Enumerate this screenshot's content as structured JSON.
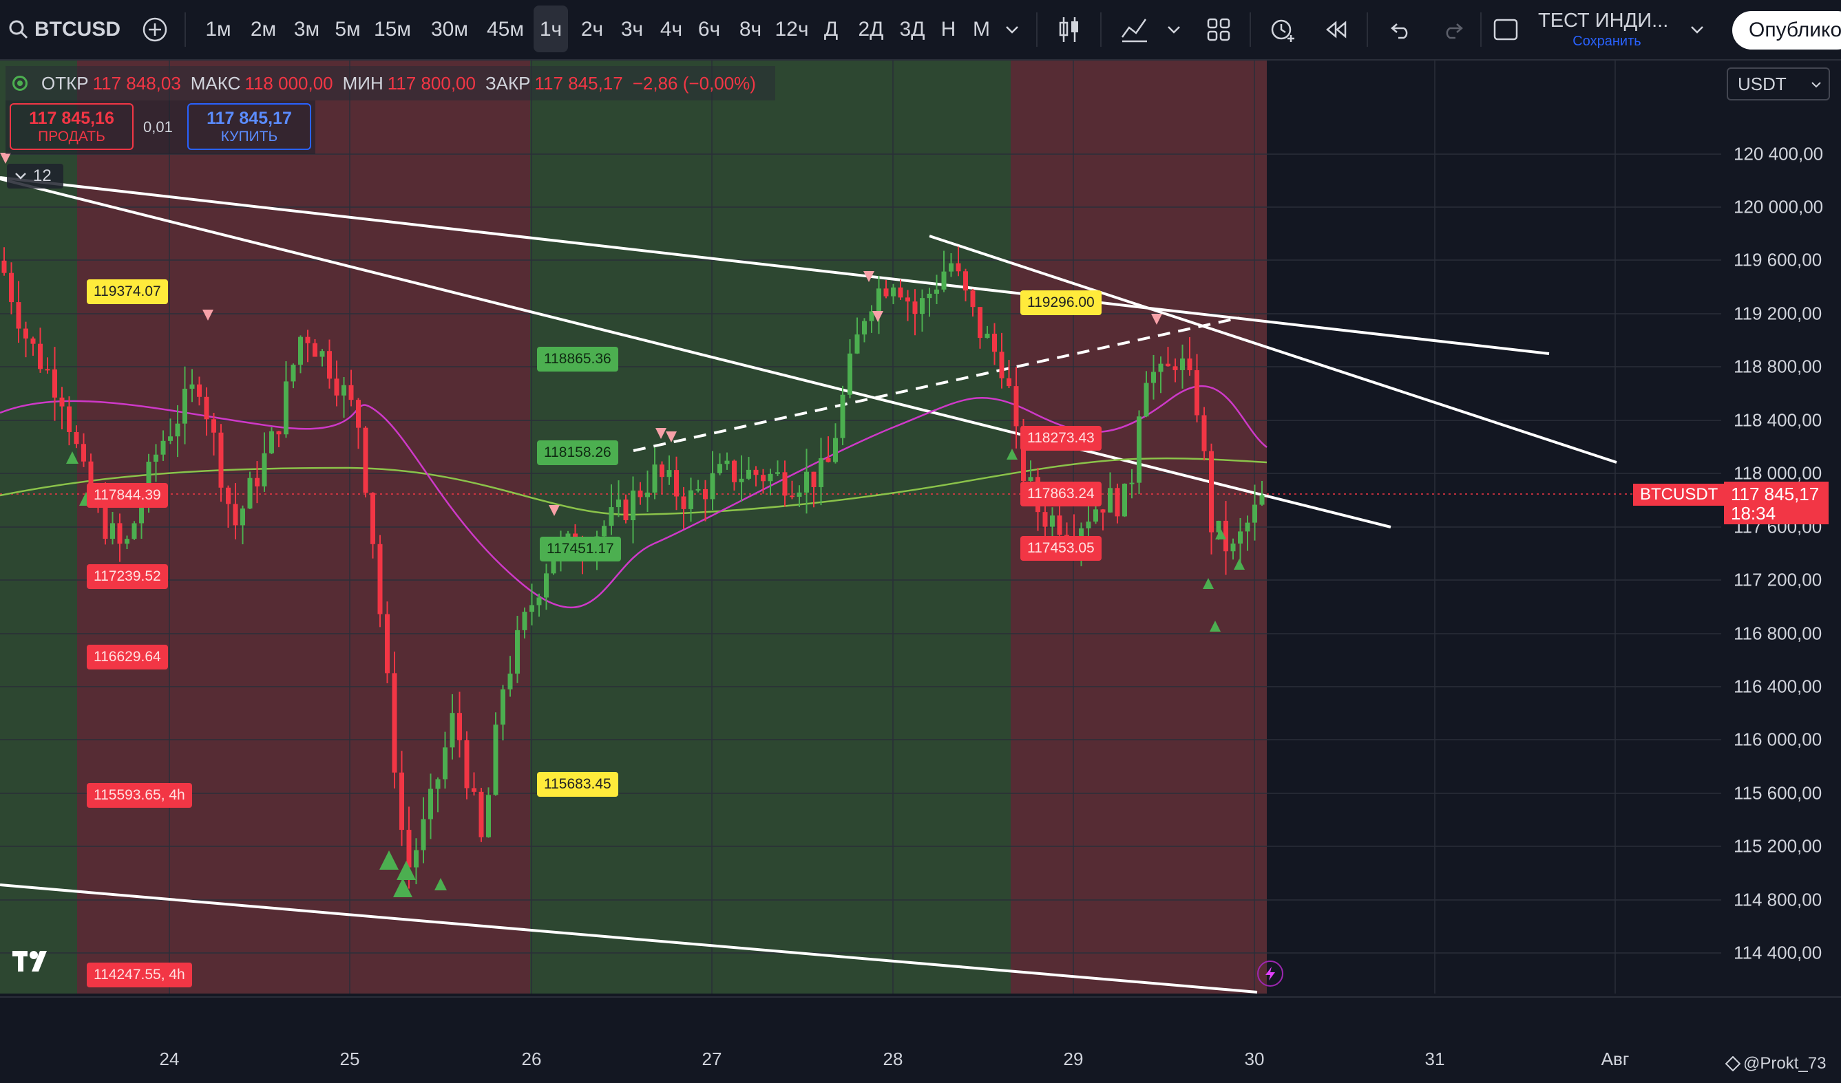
{
  "toolbar": {
    "symbol": "BTCUSD",
    "intervals": [
      "1м",
      "2м",
      "3м",
      "5м",
      "15м",
      "30м",
      "45м",
      "1ч",
      "2ч",
      "3ч",
      "4ч",
      "6ч",
      "8ч",
      "12ч",
      "Д",
      "2Д",
      "3Д",
      "Н",
      "М"
    ],
    "selected_interval": "1ч",
    "layout_name": "ТЕСТ ИНДИ...",
    "save_label": "Сохранить",
    "publish_label": "Опублико"
  },
  "legend": {
    "open_label": "ОТКР",
    "open": "117 848,03",
    "high_label": "МАКС",
    "high": "118 000,00",
    "low_label": "МИН",
    "low": "117 800,00",
    "close_label": "ЗАКР",
    "close": "117 845,17",
    "change": "−2,86 (−0,00%)"
  },
  "trade": {
    "sell_price": "117 845,16",
    "sell_label": "ПРОДАТЬ",
    "spread": "0,01",
    "buy_price": "117 845,17",
    "buy_label": "КУПИТЬ"
  },
  "indicator_count": "12",
  "currency": "USDT",
  "price_axis": [
    "120 400,00",
    "120 000,00",
    "119 600,00",
    "119 200,00",
    "118 800,00",
    "118 400,00",
    "118 000,00",
    "117 600,00",
    "117 200,00",
    "116 800,00",
    "116 400,00",
    "116 000,00",
    "115 600,00",
    "115 200,00",
    "114 800,00",
    "114 400,00"
  ],
  "current": {
    "symbol": "BTCUSDT",
    "price": "117 845,17",
    "countdown": "18:34"
  },
  "time_axis": [
    "24",
    "25",
    "26",
    "27",
    "28",
    "29",
    "30",
    "31",
    "Авг"
  ],
  "watermark": "@Prokt_73",
  "levels": {
    "l1": "119374.07",
    "l2": "118865.36",
    "l3": "118158.26",
    "l4": "117451.17",
    "l5": "117844.39",
    "l6": "117239.52",
    "l7": "116629.64",
    "l8": "115593.65, 4h",
    "l9": "115683.45",
    "l10": "114247.55, 4h",
    "l11": "119296.00",
    "l12": "118273.43",
    "l13": "117863.24",
    "l14": "117453.05"
  },
  "colors": {
    "up": "#4caf50",
    "down": "#f23645",
    "bg": "#131722",
    "zone_green": "#2e4a33",
    "zone_red": "#5a2d36"
  },
  "chart_data": {
    "type": "candlestick",
    "title": "BTCUSD",
    "ylim": [
      114200,
      120600
    ],
    "x_labels": [
      "24",
      "25",
      "26",
      "27",
      "28",
      "29",
      "30",
      "31",
      "Авг"
    ],
    "last_price": 117845.17
  }
}
